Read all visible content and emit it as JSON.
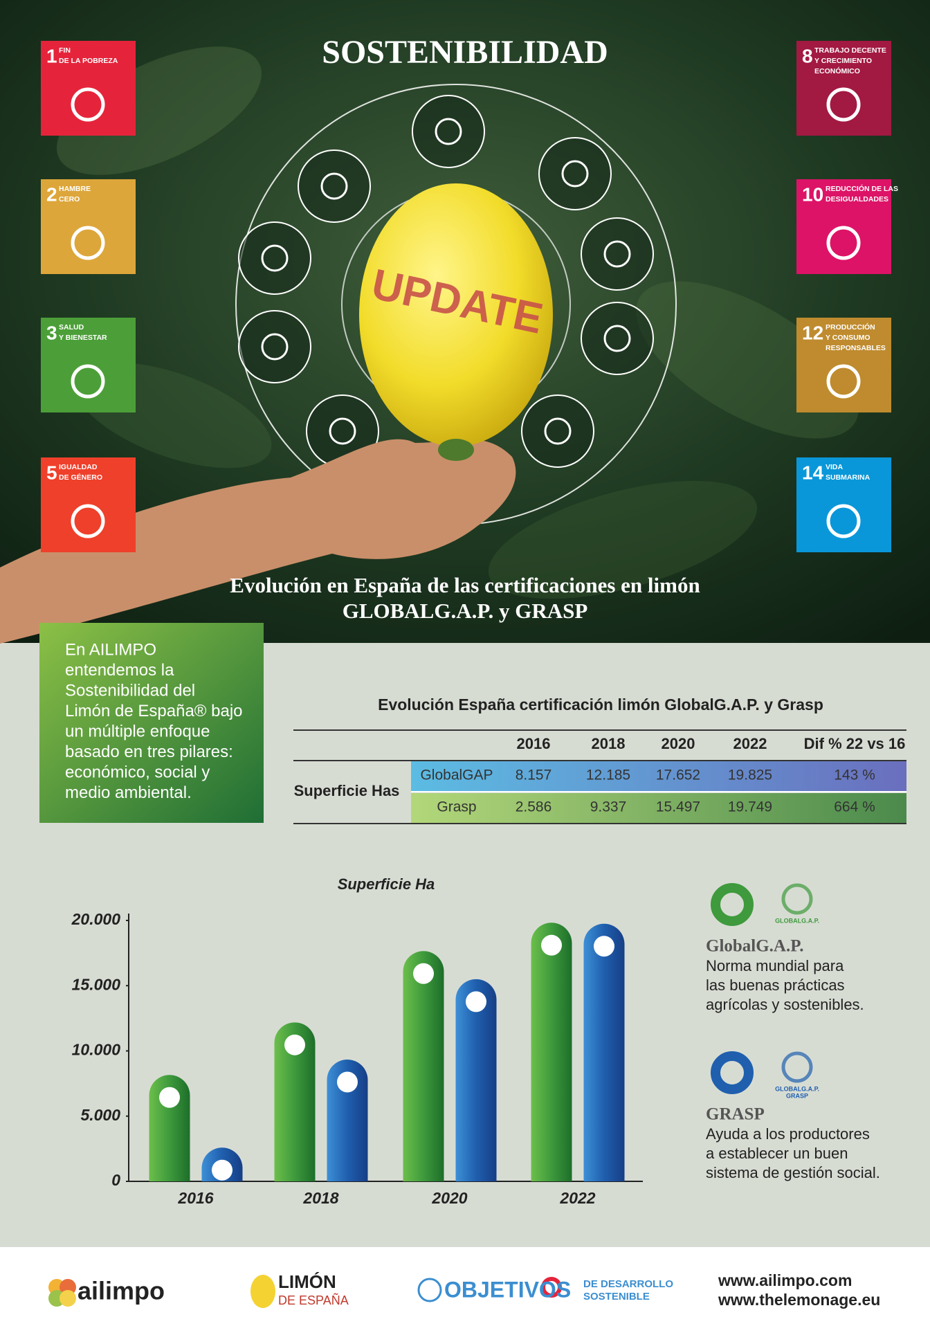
{
  "header": {
    "title": "SOSTENIBILIDAD",
    "badge": "UPDATE"
  },
  "sdg_goals": [
    {
      "number": "1",
      "label": [
        "FIN",
        "DE LA POBREZA"
      ],
      "color": "#e5243b"
    },
    {
      "number": "2",
      "label": [
        "HAMBRE",
        "CERO"
      ],
      "color": "#dda63a"
    },
    {
      "number": "3",
      "label": [
        "SALUD",
        "Y BIENESTAR"
      ],
      "color": "#4c9f38"
    },
    {
      "number": "5",
      "label": [
        "IGUALDAD",
        "DE GÉNERO"
      ],
      "color": "#ef402b"
    },
    {
      "number": "8",
      "label": [
        "TRABAJO DECENTE",
        "Y CRECIMIENTO",
        "ECONÓMICO"
      ],
      "color": "#a21942"
    },
    {
      "number": "10",
      "label": [
        "REDUCCIÓN DE LAS",
        "DESIGUALDADES"
      ],
      "color": "#dd1367"
    },
    {
      "number": "12",
      "label": [
        "PRODUCCIÓN",
        "Y CONSUMO",
        "RESPONSABLES"
      ],
      "color": "#bf8b2e"
    },
    {
      "number": "14",
      "label": [
        "VIDA",
        "SUBMARINA"
      ],
      "color": "#0a97d9"
    }
  ],
  "subtitle": [
    "Evolución en España de las certificaciones en limón",
    "GLOBALG.A.P. y GRASP"
  ],
  "intro": [
    "En AILIMPO",
    "entendemos la",
    "Sostenibilidad del",
    "Limón de España® bajo",
    "un múltiple enfoque",
    "basado en tres pilares:",
    "económico, social y",
    "medio ambiental."
  ],
  "table": {
    "title": "Evolución España certificación limón GlobalG.A.P. y Grasp",
    "columns": [
      "2016",
      "2018",
      "2020",
      "2022",
      "Dif % 22 vs 16"
    ],
    "row_group": "Superficie Has",
    "rows": [
      {
        "name": "GlobalGAP",
        "cells": [
          "8.157",
          "12.185",
          "17.652",
          "19.825",
          "143 %"
        ]
      },
      {
        "name": "Grasp",
        "cells": [
          "2.586",
          "9.337",
          "15.497",
          "19.749",
          "664 %"
        ]
      }
    ]
  },
  "chart_data": {
    "type": "bar",
    "title": "Superficie Ha",
    "categories": [
      "2016",
      "2018",
      "2020",
      "2022"
    ],
    "series": [
      {
        "name": "GlobalG.A.P.",
        "color": "#3e9a3c",
        "values": [
          8157,
          12185,
          17652,
          19825
        ]
      },
      {
        "name": "GRASP",
        "color": "#1f5fae",
        "values": [
          2586,
          9337,
          15497,
          19749
        ]
      }
    ],
    "ylim": [
      0,
      20000
    ],
    "yticks": [
      0,
      {
        "value": 5000,
        "label": "5.000"
      },
      {
        "value": 10000,
        "label": "10.000"
      },
      {
        "value": 15000,
        "label": "15.000"
      },
      {
        "value": 20000,
        "label": "20.000"
      }
    ]
  },
  "legend_notes": [
    {
      "logo": [
        "GLOBALG.A.P."
      ],
      "lines": [
        "Norma mundial para",
        "las buenas prácticas",
        "agrícolas y  sostenibles."
      ]
    },
    {
      "logo": [
        "GLOBALG.A.P.",
        "GRASP"
      ],
      "lines": [
        "Ayuda a los productores",
        "a establecer un buen",
        "sistema de gestión social."
      ]
    }
  ],
  "footer": {
    "brand": "ailimpo",
    "limon": [
      "LIMÓN",
      "DE ESPAÑA"
    ],
    "ods": [
      "OBJETIVOS",
      "DE DESARROLLO",
      "SOSTENIBLE"
    ],
    "links": [
      "www.ailimpo.com",
      "www.thelemonage.eu"
    ]
  }
}
